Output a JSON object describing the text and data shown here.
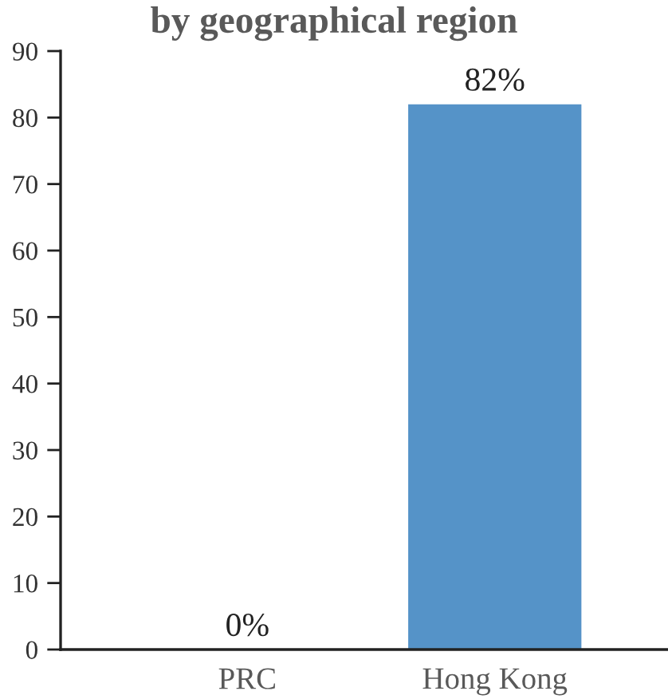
{
  "chart_data": {
    "type": "bar",
    "title": "by geographical region",
    "categories": [
      "PRC",
      "Hong Kong"
    ],
    "values": [
      0,
      82
    ],
    "color": "#5593c8",
    "value_labels": [
      "0%",
      "82%"
    ],
    "ylim": [
      0,
      90
    ],
    "yticks": [
      0,
      10,
      20,
      30,
      40,
      50,
      60,
      70,
      80,
      90
    ],
    "grid": false,
    "legend": false
  }
}
